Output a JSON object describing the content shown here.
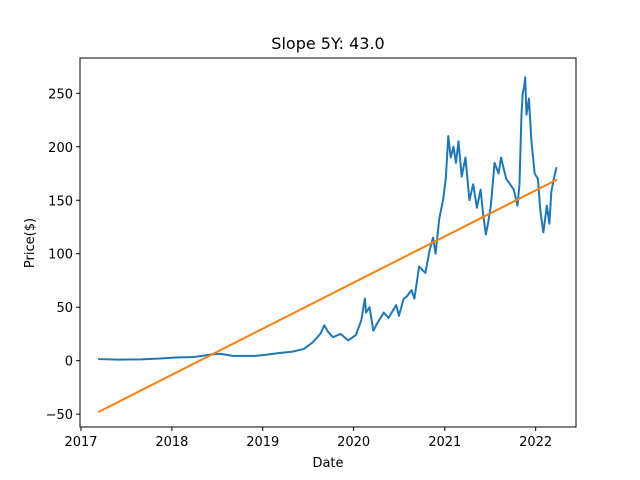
{
  "chart_data": {
    "type": "line",
    "title": "Slope 5Y: 43.0",
    "xlabel": "Date",
    "ylabel": "Price($)",
    "xlim": [
      "2016-12-28",
      "2022-06-12"
    ],
    "ylim": [
      -62,
      283
    ],
    "xticks": [
      {
        "label": "2017",
        "date": "2017-01-01"
      },
      {
        "label": "2018",
        "date": "2018-01-01"
      },
      {
        "label": "2019",
        "date": "2019-01-01"
      },
      {
        "label": "2020",
        "date": "2020-01-01"
      },
      {
        "label": "2021",
        "date": "2021-01-01"
      },
      {
        "label": "2022",
        "date": "2022-01-01"
      }
    ],
    "yticks": [
      -50,
      0,
      50,
      100,
      150,
      200,
      250
    ],
    "grid": false,
    "series": [
      {
        "color": "#1f77b4",
        "points": [
          [
            "2017-03-15",
            1.5
          ],
          [
            "2017-06-01",
            1.0
          ],
          [
            "2017-09-01",
            1.2
          ],
          [
            "2017-11-15",
            2.0
          ],
          [
            "2018-01-15",
            3.0
          ],
          [
            "2018-04-01",
            3.5
          ],
          [
            "2018-06-15",
            6.0
          ],
          [
            "2018-07-15",
            6.5
          ],
          [
            "2018-09-01",
            4.5
          ],
          [
            "2018-12-01",
            4.5
          ],
          [
            "2019-01-15",
            5.5
          ],
          [
            "2019-03-01",
            7.0
          ],
          [
            "2019-05-01",
            8.5
          ],
          [
            "2019-06-15",
            11.0
          ],
          [
            "2019-07-20",
            17.0
          ],
          [
            "2019-08-20",
            25.0
          ],
          [
            "2019-09-05",
            33.0
          ],
          [
            "2019-09-20",
            27.0
          ],
          [
            "2019-10-10",
            22.0
          ],
          [
            "2019-11-10",
            25.0
          ],
          [
            "2019-12-10",
            19.0
          ],
          [
            "2020-01-10",
            24.0
          ],
          [
            "2020-02-01",
            38.0
          ],
          [
            "2020-02-15",
            58.0
          ],
          [
            "2020-02-20",
            45.0
          ],
          [
            "2020-03-05",
            50.0
          ],
          [
            "2020-03-20",
            28.0
          ],
          [
            "2020-04-05",
            35.0
          ],
          [
            "2020-05-01",
            45.0
          ],
          [
            "2020-05-20",
            40.0
          ],
          [
            "2020-06-20",
            52.0
          ],
          [
            "2020-07-01",
            42.0
          ],
          [
            "2020-07-20",
            58.0
          ],
          [
            "2020-08-01",
            60.0
          ],
          [
            "2020-08-20",
            66.0
          ],
          [
            "2020-09-01",
            58.0
          ],
          [
            "2020-09-20",
            88.0
          ],
          [
            "2020-10-15",
            82.0
          ],
          [
            "2020-11-01",
            103.0
          ],
          [
            "2020-11-15",
            115.0
          ],
          [
            "2020-11-25",
            100.0
          ],
          [
            "2020-12-10",
            133.0
          ],
          [
            "2020-12-25",
            150.0
          ],
          [
            "2021-01-05",
            170.0
          ],
          [
            "2021-01-15",
            210.0
          ],
          [
            "2021-01-25",
            190.0
          ],
          [
            "2021-02-05",
            200.0
          ],
          [
            "2021-02-15",
            185.0
          ],
          [
            "2021-02-25",
            205.0
          ],
          [
            "2021-03-10",
            172.0
          ],
          [
            "2021-03-25",
            190.0
          ],
          [
            "2021-04-10",
            150.0
          ],
          [
            "2021-04-25",
            165.0
          ],
          [
            "2021-05-10",
            143.0
          ],
          [
            "2021-05-25",
            160.0
          ],
          [
            "2021-06-05",
            135.0
          ],
          [
            "2021-06-15",
            118.0
          ],
          [
            "2021-06-25",
            130.0
          ],
          [
            "2021-07-05",
            145.0
          ],
          [
            "2021-07-20",
            185.0
          ],
          [
            "2021-08-05",
            175.0
          ],
          [
            "2021-08-15",
            190.0
          ],
          [
            "2021-08-25",
            180.0
          ],
          [
            "2021-09-05",
            170.0
          ],
          [
            "2021-09-20",
            165.0
          ],
          [
            "2021-10-05",
            160.0
          ],
          [
            "2021-10-20",
            145.0
          ],
          [
            "2021-10-28",
            165.0
          ],
          [
            "2021-11-05",
            230.0
          ],
          [
            "2021-11-10",
            250.0
          ],
          [
            "2021-11-15",
            255.0
          ],
          [
            "2021-11-20",
            265.0
          ],
          [
            "2021-11-25",
            230.0
          ],
          [
            "2021-12-05",
            245.0
          ],
          [
            "2021-12-15",
            205.0
          ],
          [
            "2021-12-28",
            175.0
          ],
          [
            "2022-01-10",
            170.0
          ],
          [
            "2022-01-20",
            140.0
          ],
          [
            "2022-02-01",
            120.0
          ],
          [
            "2022-02-15",
            145.0
          ],
          [
            "2022-02-25",
            128.0
          ],
          [
            "2022-03-05",
            158.0
          ],
          [
            "2022-03-15",
            170.0
          ],
          [
            "2022-03-25",
            180.0
          ]
        ]
      },
      {
        "color": "#ff7f0e",
        "points": [
          [
            "2017-03-15",
            -47.6
          ],
          [
            "2022-03-25",
            169.0
          ]
        ]
      }
    ]
  }
}
